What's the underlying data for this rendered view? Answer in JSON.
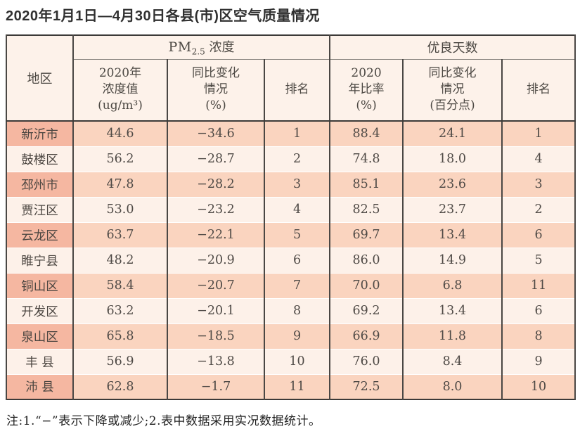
{
  "title": "2020年1月1日—4月30日各县(市)区空气质量情况",
  "table": {
    "region_header": "地区",
    "pm_group": {
      "prefix": "PM",
      "subscript": "2.5",
      "suffix": " 浓度"
    },
    "days_group_label": "优良天数",
    "sub_headers": [
      "2020年\n浓度值\n(ug/m³)",
      "同比变化\n情况\n(%)",
      "排名",
      "2020\n年比率\n(%)",
      "同比变化\n情况\n(百分点)",
      "排名"
    ],
    "rows": [
      {
        "region": "新沂市",
        "pm_value": "44.6",
        "pm_change": "−34.6",
        "pm_rank": "1",
        "days_ratio": "88.4",
        "days_change": "24.1",
        "days_rank": "1"
      },
      {
        "region": "鼓楼区",
        "pm_value": "56.2",
        "pm_change": "−28.7",
        "pm_rank": "2",
        "days_ratio": "74.8",
        "days_change": "18.0",
        "days_rank": "4"
      },
      {
        "region": "邳州市",
        "pm_value": "47.8",
        "pm_change": "−28.2",
        "pm_rank": "3",
        "days_ratio": "85.1",
        "days_change": "23.6",
        "days_rank": "3"
      },
      {
        "region": "贾汪区",
        "pm_value": "53.0",
        "pm_change": "−23.2",
        "pm_rank": "4",
        "days_ratio": "82.5",
        "days_change": "23.7",
        "days_rank": "2"
      },
      {
        "region": "云龙区",
        "pm_value": "63.7",
        "pm_change": "−22.1",
        "pm_rank": "5",
        "days_ratio": "69.7",
        "days_change": "13.4",
        "days_rank": "6"
      },
      {
        "region": "睢宁县",
        "pm_value": "48.2",
        "pm_change": "−20.9",
        "pm_rank": "6",
        "days_ratio": "86.0",
        "days_change": "14.9",
        "days_rank": "5"
      },
      {
        "region": "铜山区",
        "pm_value": "58.4",
        "pm_change": "−20.7",
        "pm_rank": "7",
        "days_ratio": "70.0",
        "days_change": "6.8",
        "days_rank": "11"
      },
      {
        "region": "开发区",
        "pm_value": "63.2",
        "pm_change": "−20.1",
        "pm_rank": "8",
        "days_ratio": "69.2",
        "days_change": "13.4",
        "days_rank": "6"
      },
      {
        "region": "泉山区",
        "pm_value": "65.8",
        "pm_change": "−18.5",
        "pm_rank": "9",
        "days_ratio": "66.9",
        "days_change": "11.8",
        "days_rank": "8"
      },
      {
        "region": "丰 县",
        "pm_value": "56.9",
        "pm_change": "−13.8",
        "pm_rank": "10",
        "days_ratio": "76.0",
        "days_change": "8.4",
        "days_rank": "9"
      },
      {
        "region": "沛 县",
        "pm_value": "62.8",
        "pm_change": "−1.7",
        "pm_rank": "11",
        "days_ratio": "72.5",
        "days_change": "8.0",
        "days_rank": "10"
      }
    ]
  },
  "footnote": "注:1.“−”表示下降或减少;2.表中数据采用实况数据统计。",
  "colors": {
    "odd_row_bg": "#fad4bf",
    "odd_row_region_bg": "#f5b7a1",
    "even_row_bg": "#fdf1e9",
    "header_bg": "#fdf2ea",
    "border_dark": "#3c3a38",
    "border_vertical": "#4a4744",
    "text": "#4f4a46"
  }
}
